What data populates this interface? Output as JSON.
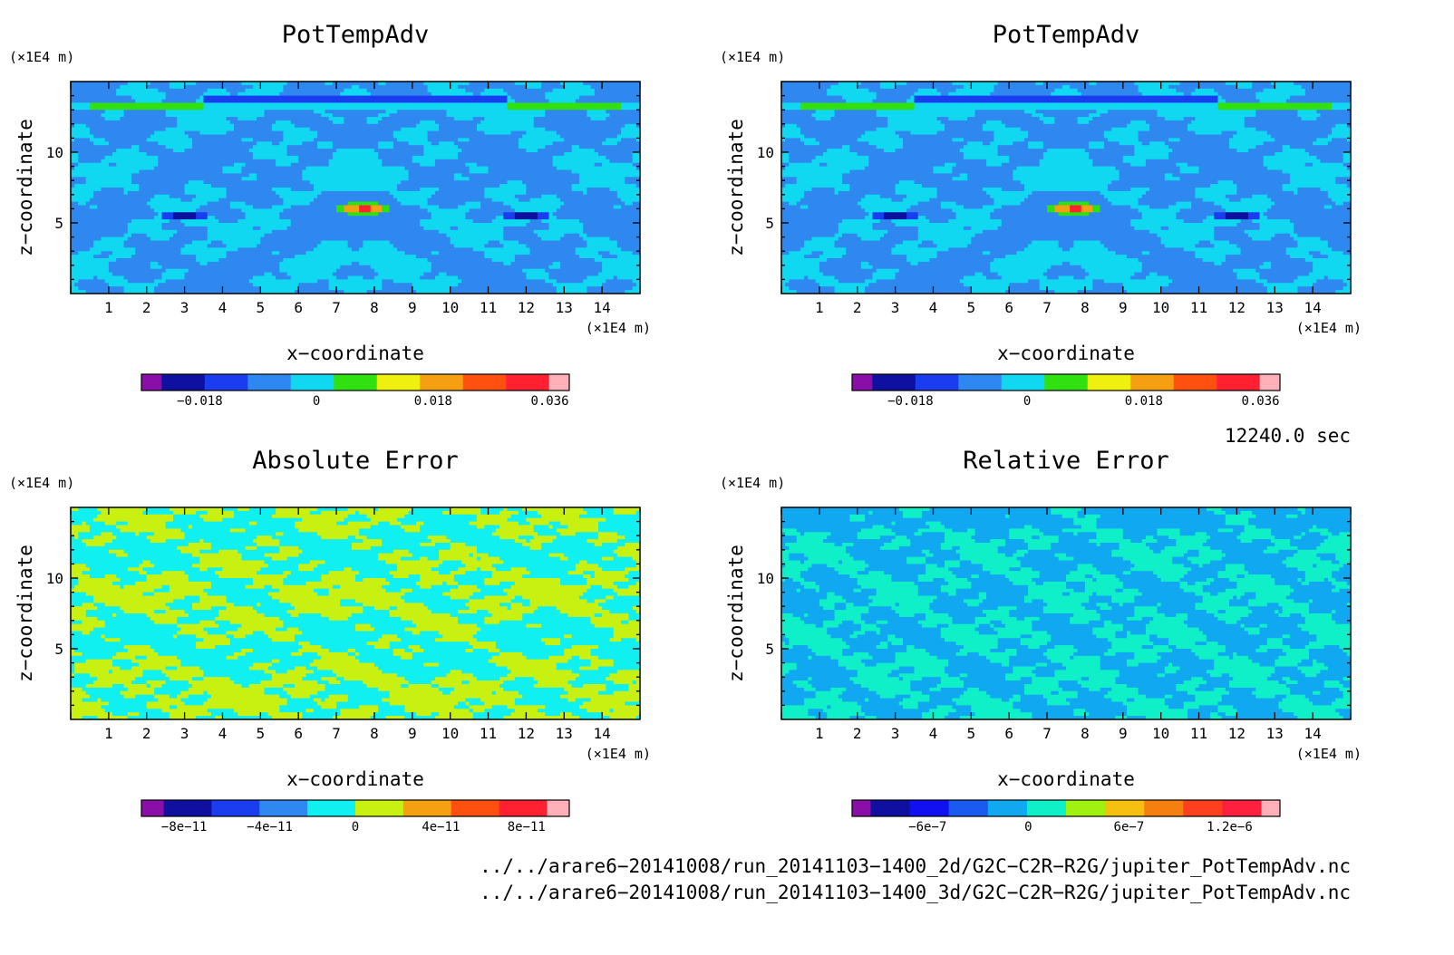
{
  "chart_data": [
    {
      "type": "heatmap",
      "title": "PotTempAdv",
      "xlabel": "x−coordinate",
      "ylabel": "z−coordinate",
      "x_unit": "(×1E4 m)",
      "y_unit": "(×1E4 m)",
      "xlim": [
        0,
        15
      ],
      "ylim": [
        0,
        15
      ],
      "x_ticks": [
        "1",
        "2",
        "3",
        "4",
        "5",
        "6",
        "7",
        "8",
        "9",
        "10",
        "11",
        "12",
        "13",
        "14"
      ],
      "y_ticks": [
        "5",
        "10"
      ],
      "pattern": "advection",
      "colorbar": {
        "colors": [
          "#8a0fa8",
          "#1010a0",
          "#1a3df0",
          "#2f88f0",
          "#10d8f0",
          "#30e010",
          "#f0f010",
          "#f5a010",
          "#ff5010",
          "#ff2030",
          "#ffb0b8"
        ],
        "tick_labels": [
          "−0.018",
          "0",
          "0.018",
          "0.036"
        ],
        "tick_values": [
          -0.018,
          0,
          0.018,
          0.036
        ],
        "range": [
          -0.027,
          0.039
        ]
      }
    },
    {
      "type": "heatmap",
      "title": "PotTempAdv",
      "xlabel": "x−coordinate",
      "ylabel": "z−coordinate",
      "x_unit": "(×1E4 m)",
      "y_unit": "(×1E4 m)",
      "xlim": [
        0,
        15
      ],
      "ylim": [
        0,
        15
      ],
      "x_ticks": [
        "1",
        "2",
        "3",
        "4",
        "5",
        "6",
        "7",
        "8",
        "9",
        "10",
        "11",
        "12",
        "13",
        "14"
      ],
      "y_ticks": [
        "5",
        "10"
      ],
      "pattern": "advection",
      "colorbar": {
        "colors": [
          "#8a0fa8",
          "#1010a0",
          "#1a3df0",
          "#2f88f0",
          "#10d8f0",
          "#30e010",
          "#f0f010",
          "#f5a010",
          "#ff5010",
          "#ff2030",
          "#ffb0b8"
        ],
        "tick_labels": [
          "−0.018",
          "0",
          "0.018",
          "0.036"
        ],
        "tick_values": [
          -0.018,
          0,
          0.018,
          0.036
        ],
        "range": [
          -0.027,
          0.039
        ]
      }
    },
    {
      "type": "heatmap",
      "title": "Absolute Error",
      "xlabel": "x−coordinate",
      "ylabel": "z−coordinate",
      "x_unit": "(×1E4 m)",
      "y_unit": "(×1E4 m)",
      "xlim": [
        0,
        15
      ],
      "ylim": [
        0,
        15
      ],
      "x_ticks": [
        "1",
        "2",
        "3",
        "4",
        "5",
        "6",
        "7",
        "8",
        "9",
        "10",
        "11",
        "12",
        "13",
        "14"
      ],
      "y_ticks": [
        "5",
        "10"
      ],
      "pattern": "abs_error",
      "colorbar": {
        "colors": [
          "#8a0fa8",
          "#1010a0",
          "#1a3df0",
          "#2f88f0",
          "#10f0f0",
          "#c8f010",
          "#f5a010",
          "#ff5010",
          "#ff2030",
          "#ffb0b8"
        ],
        "tick_labels": [
          "−8e−11",
          "−4e−11",
          "0",
          "4e−11",
          "8e−11"
        ],
        "tick_values": [
          -8e-11,
          -4e-11,
          0,
          4e-11,
          8e-11
        ],
        "range": [
          -1e-10,
          1e-10
        ]
      }
    },
    {
      "type": "heatmap",
      "title": "Relative Error",
      "xlabel": "x−coordinate",
      "ylabel": "z−coordinate",
      "x_unit": "(×1E4 m)",
      "y_unit": "(×1E4 m)",
      "xlim": [
        0,
        15
      ],
      "ylim": [
        0,
        15
      ],
      "x_ticks": [
        "1",
        "2",
        "3",
        "4",
        "5",
        "6",
        "7",
        "8",
        "9",
        "10",
        "11",
        "12",
        "13",
        "14"
      ],
      "y_ticks": [
        "5",
        "10"
      ],
      "pattern": "rel_error",
      "colorbar": {
        "colors": [
          "#8a0fa8",
          "#1010a0",
          "#1010f0",
          "#1a5af0",
          "#10a8f0",
          "#10f0c8",
          "#a0f010",
          "#f5c010",
          "#f58010",
          "#ff4020",
          "#ff2040",
          "#ffb0b8"
        ],
        "tick_labels": [
          "−6e−7",
          "0",
          "6e−7",
          "1.2e−6"
        ],
        "tick_values": [
          -6e-07,
          0,
          6e-07,
          1.2e-06
        ],
        "range": [
          -1.05e-06,
          1.5e-06
        ]
      }
    }
  ],
  "time_label": "12240.0 sec",
  "file_paths": [
    "../../arare6−20141008/run_20141103−1400_2d/G2C−C2R−R2G/jupiter_PotTempAdv.nc",
    "../../arare6−20141008/run_20141103−1400_3d/G2C−C2R−R2G/jupiter_PotTempAdv.nc"
  ]
}
